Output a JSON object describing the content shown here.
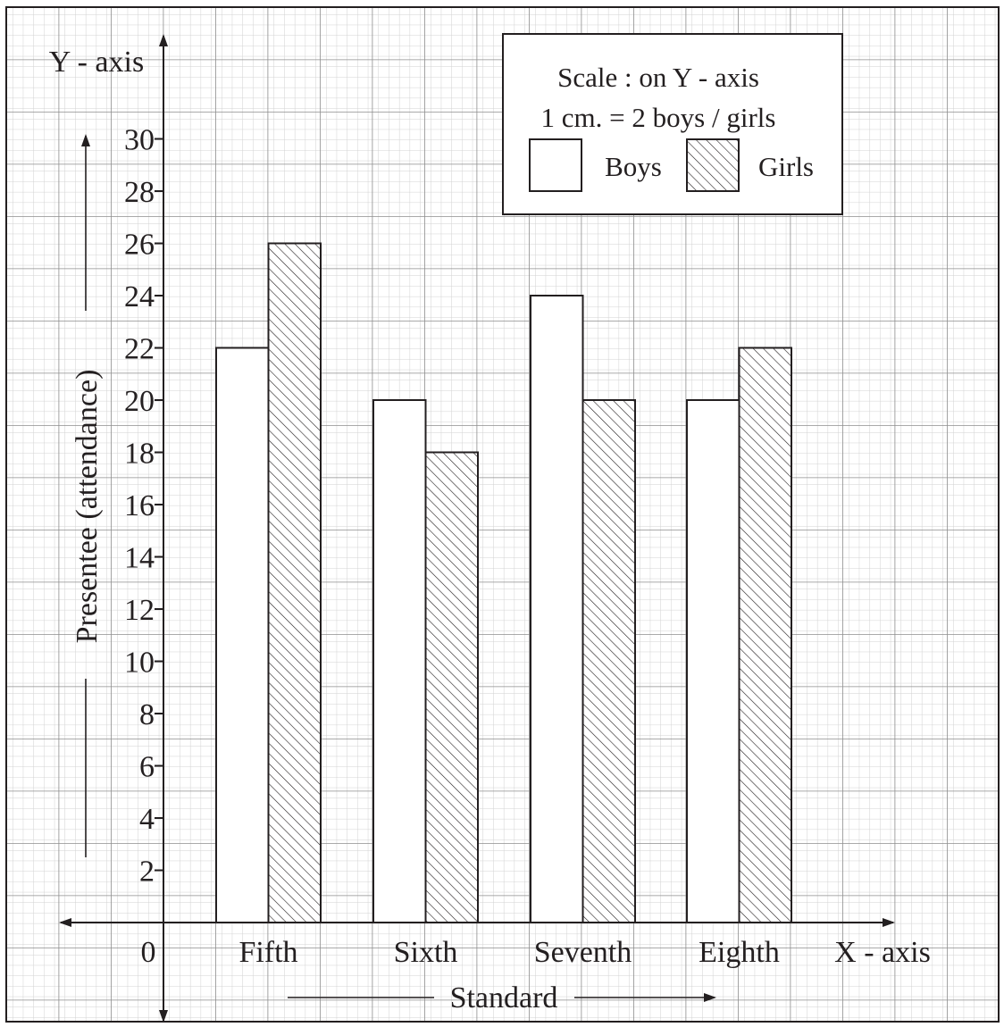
{
  "chart_data": {
    "type": "bar",
    "categories": [
      "Fifth",
      "Sixth",
      "Seventh",
      "Eighth"
    ],
    "series": [
      {
        "name": "Boys",
        "values": [
          22,
          20,
          24,
          20
        ]
      },
      {
        "name": "Girls",
        "values": [
          26,
          18,
          20,
          22
        ]
      }
    ],
    "ylim": [
      0,
      30
    ],
    "yticks": [
      "2",
      "4",
      "6",
      "8",
      "10",
      "12",
      "14",
      "16",
      "18",
      "20",
      "22",
      "24",
      "26",
      "28",
      "30"
    ],
    "origin_label": "0",
    "xaxis_name": "X - axis",
    "yaxis_name": "Y - axis",
    "xlabel": "Standard",
    "ylabel": "Presentee (attendance)",
    "legend": {
      "title_line1": "Scale : on Y - axis",
      "title_line2": "1 cm. = 2 boys / girls",
      "position": "top-right"
    },
    "grid": true,
    "colors": {
      "boys": "#ffffff",
      "girls_hatch": "#231f20",
      "grid_major": "#9a9a9a",
      "grid_minor": "#cfcfcf",
      "ink": "#231f20"
    }
  }
}
